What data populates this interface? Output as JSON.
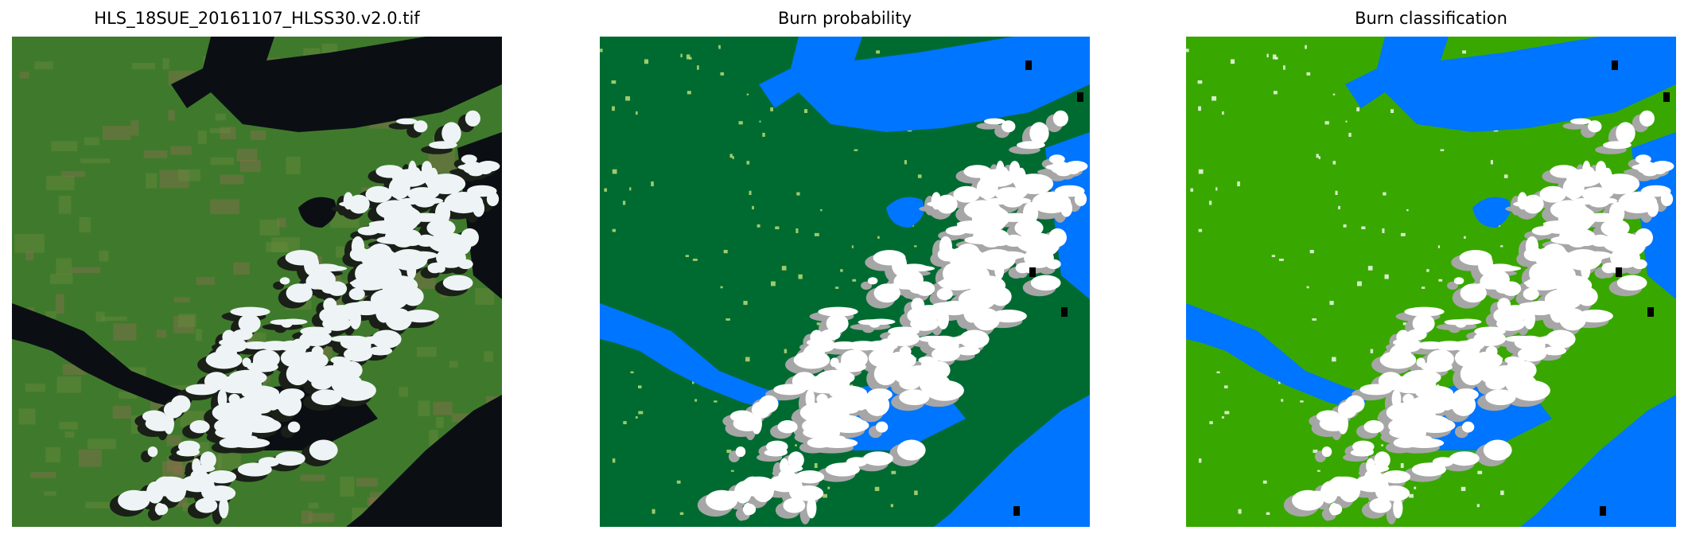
{
  "panels": [
    {
      "title": "HLS_18SUE_20161107_HLSS30.v2.0.tif",
      "kind": "rgb",
      "colors": {
        "land": "#3f7a2c",
        "land_light": "#6a8a3e",
        "field": "#8a6e4e",
        "water": "#0b0f14",
        "cloud": "#eef4f6",
        "shadow": "#1a1f18"
      }
    },
    {
      "title": "Burn probability",
      "kind": "probability",
      "colors": {
        "land": "#006b31",
        "water": "#0075ff",
        "cloud": "#ffffff",
        "cloud_shadow": "#a6a6a6",
        "nodata": "#000000",
        "speck": "#c8e27a"
      }
    },
    {
      "title": "Burn classification",
      "kind": "classification",
      "colors": {
        "land": "#38a800",
        "water": "#0075ff",
        "cloud": "#ffffff",
        "cloud_shadow": "#a6a6a6",
        "nodata": "#000000",
        "burn": "#e60000"
      }
    }
  ]
}
